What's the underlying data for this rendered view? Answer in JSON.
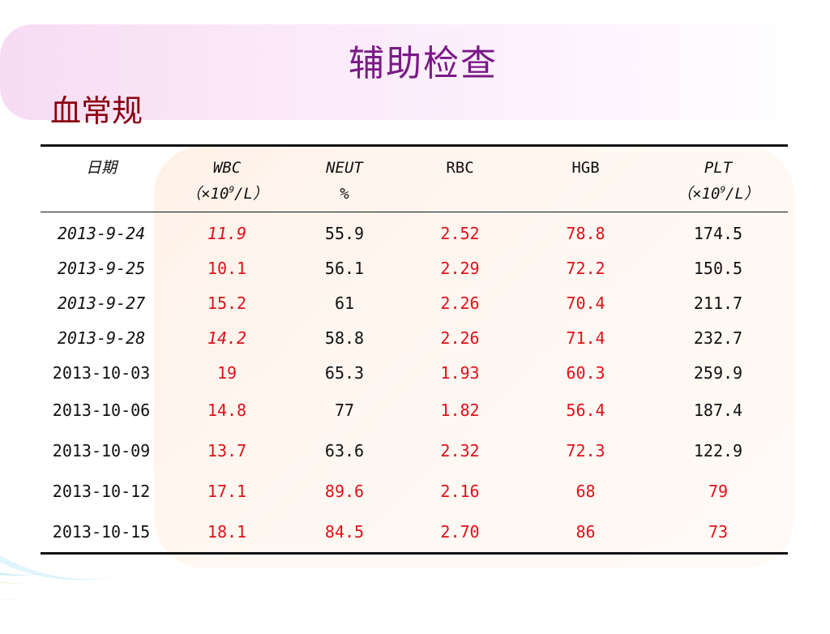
{
  "slide": {
    "title": "辅助检查",
    "subtitle": "血常规"
  },
  "colors": {
    "title": "#7a1a86",
    "subtitle": "#8b0010",
    "abnormal": "#e0101a",
    "normal": "#111111"
  },
  "table": {
    "headers": {
      "date": "日期",
      "wbc": "WBC",
      "wbc_unit_pre": "（×10",
      "wbc_unit_exp": "9",
      "wbc_unit_post": "/L）",
      "neut": "NEUT",
      "neut_unit": "%",
      "rbc": "RBC",
      "hgb": "HGB",
      "plt": "PLT",
      "plt_unit_pre": "（×10",
      "plt_unit_exp": "9",
      "plt_unit_post": "/L）"
    },
    "rows": [
      {
        "date": "2013-9-24",
        "wbc": "11.9",
        "neut": "55.9",
        "rbc": "2.52",
        "hgb": "78.8",
        "plt": "174.5"
      },
      {
        "date": "2013-9-25",
        "wbc": "10.1",
        "neut": "56.1",
        "rbc": "2.29",
        "hgb": "72.2",
        "plt": "150.5"
      },
      {
        "date": "2013-9-27",
        "wbc": "15.2",
        "neut": "61",
        "rbc": "2.26",
        "hgb": "70.4",
        "plt": "211.7"
      },
      {
        "date": "2013-9-28",
        "wbc": "14.2",
        "neut": "58.8",
        "rbc": "2.26",
        "hgb": "71.4",
        "plt": "232.7"
      },
      {
        "date": "2013-10-03",
        "wbc": "19",
        "neut": "65.3",
        "rbc": "1.93",
        "hgb": "60.3",
        "plt": "259.9"
      },
      {
        "date": "2013-10-06",
        "wbc": "14.8",
        "neut": "77",
        "rbc": "1.82",
        "hgb": "56.4",
        "plt": "187.4"
      },
      {
        "date": "2013-10-09",
        "wbc": "13.7",
        "neut": "63.6",
        "rbc": "2.32",
        "hgb": "72.3",
        "plt": "122.9"
      },
      {
        "date": "2013-10-12",
        "wbc": "17.1",
        "neut": "89.6",
        "rbc": "2.16",
        "hgb": "68",
        "plt": "79"
      },
      {
        "date": "2013-10-15",
        "wbc": "18.1",
        "neut": "84.5",
        "rbc": "2.70",
        "hgb": "86",
        "plt": "73"
      }
    ]
  }
}
